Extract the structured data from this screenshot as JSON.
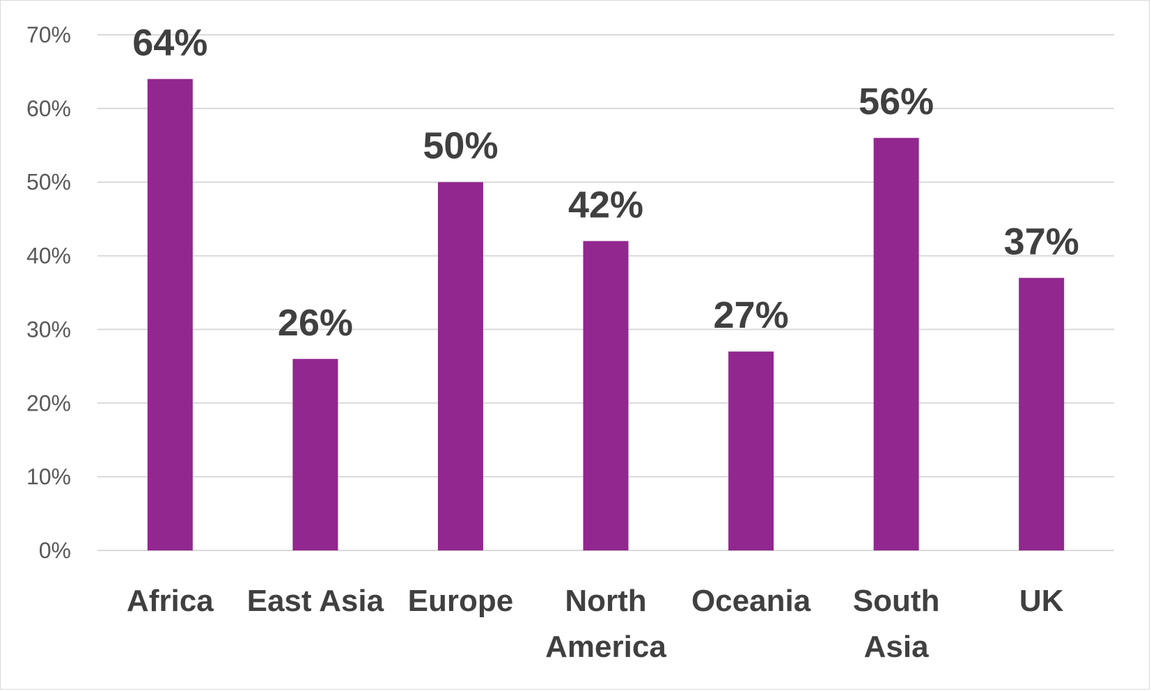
{
  "chart_data": {
    "type": "bar",
    "title": "",
    "xlabel": "",
    "ylabel": "",
    "categories": [
      [
        "Africa"
      ],
      [
        "East Asia"
      ],
      [
        "Europe"
      ],
      [
        "North",
        "America"
      ],
      [
        "Oceania"
      ],
      [
        "South",
        "Asia"
      ],
      [
        "UK"
      ]
    ],
    "values": [
      64,
      26,
      50,
      42,
      27,
      56,
      37
    ],
    "data_labels": [
      "64%",
      "26%",
      "50%",
      "42%",
      "27%",
      "56%",
      "37%"
    ],
    "ylim": [
      0,
      70
    ],
    "yticks": [
      0,
      10,
      20,
      30,
      40,
      50,
      60,
      70
    ],
    "ytick_labels": [
      "0%",
      "10%",
      "20%",
      "30%",
      "40%",
      "50%",
      "60%",
      "70%"
    ],
    "grid": true,
    "legend": "none",
    "bar_color": "#92278F"
  }
}
